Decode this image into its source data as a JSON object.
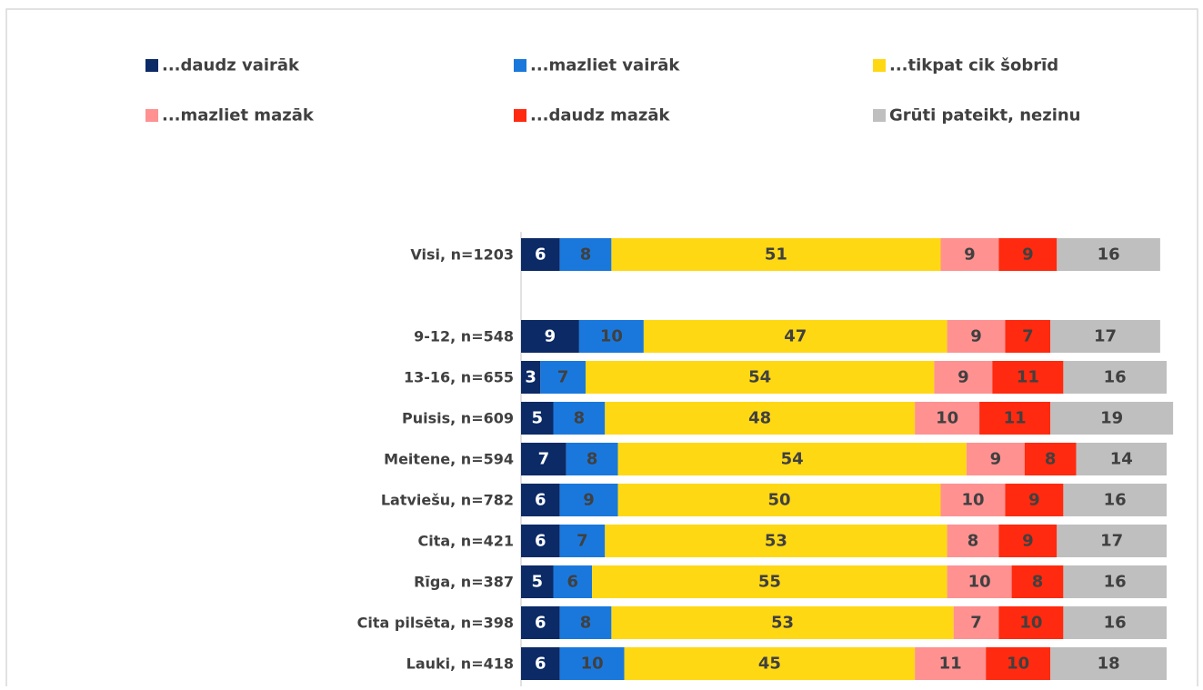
{
  "chart_data": {
    "type": "stacked-bar-horizontal",
    "categories": [
      "Visi, n=1203",
      null,
      "9-12, n=548",
      "13-16, n=655",
      "Puisis, n=609",
      "Meitene, n=594",
      "Latviešu, n=782",
      "Cita, n=421",
      "Rīga, n=387",
      "Cita pilsēta, n=398",
      "Lauki, n=418"
    ],
    "series": [
      {
        "name": "...daudz vairāk",
        "color": "#0b2a66",
        "values": [
          6,
          null,
          9,
          3,
          5,
          7,
          6,
          6,
          5,
          6,
          6
        ]
      },
      {
        "name": "...mazliet vairāk",
        "color": "#1a78dc",
        "values": [
          8,
          null,
          10,
          7,
          8,
          8,
          9,
          7,
          6,
          8,
          10
        ]
      },
      {
        "name": "...tikpat cik šobrīd",
        "color": "#ffd814",
        "values": [
          51,
          null,
          47,
          54,
          48,
          54,
          50,
          53,
          55,
          53,
          45
        ]
      },
      {
        "name": "...mazliet mazāk",
        "color": "#ff9191",
        "values": [
          9,
          null,
          9,
          9,
          10,
          9,
          10,
          8,
          10,
          7,
          11
        ]
      },
      {
        "name": "...daudz mazāk",
        "color": "#ff2a0f",
        "values": [
          9,
          null,
          7,
          11,
          11,
          8,
          9,
          9,
          8,
          10,
          10
        ]
      },
      {
        "name": "Grūti pateikt, nezinu",
        "color": "#bfbfbf",
        "values": [
          16,
          null,
          17,
          16,
          19,
          14,
          16,
          17,
          16,
          16,
          18
        ]
      }
    ],
    "xlim": [
      0,
      100
    ]
  }
}
